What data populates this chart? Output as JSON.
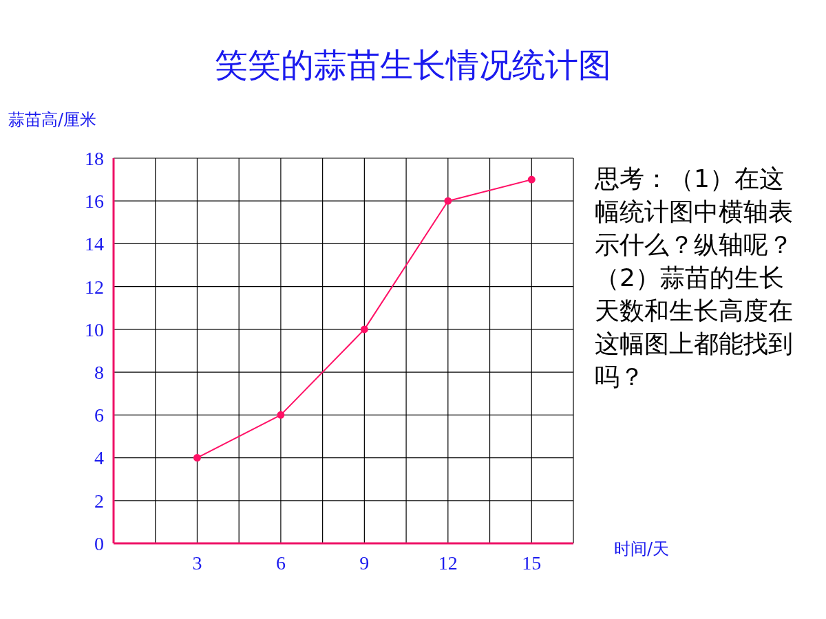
{
  "chart_data": {
    "type": "line",
    "title": "笑笑的蒜苗生长情况统计图",
    "xlabel": "时间/天",
    "ylabel": "蒜苗高/厘米",
    "x": [
      3,
      6,
      9,
      12,
      15
    ],
    "series": [
      {
        "color": "#ff1166",
        "values": [
          4,
          6,
          10,
          16,
          17
        ]
      }
    ],
    "xlim": [
      0,
      16.5
    ],
    "xticks": [
      {
        "value": 1.5,
        "label": null
      },
      3,
      {
        "value": 4.5,
        "label": null
      },
      6,
      {
        "value": 7.5,
        "label": null
      },
      9,
      {
        "value": 10.5,
        "label": null
      },
      12,
      {
        "value": 13.5,
        "label": null
      },
      15,
      {
        "value": 16.5,
        "label": null
      }
    ],
    "ylim": [
      0,
      18
    ],
    "yticks": [
      0,
      2,
      4,
      6,
      8,
      10,
      12,
      14,
      16,
      18
    ],
    "grid": true,
    "marker": "circle",
    "line_style": "solid",
    "annotations": [
      "思考：（1）在这幅统计图中横轴表示什么？纵轴呢？（2）蒜苗的生长天数和生长高度在这幅图上都能找到吗？"
    ]
  }
}
